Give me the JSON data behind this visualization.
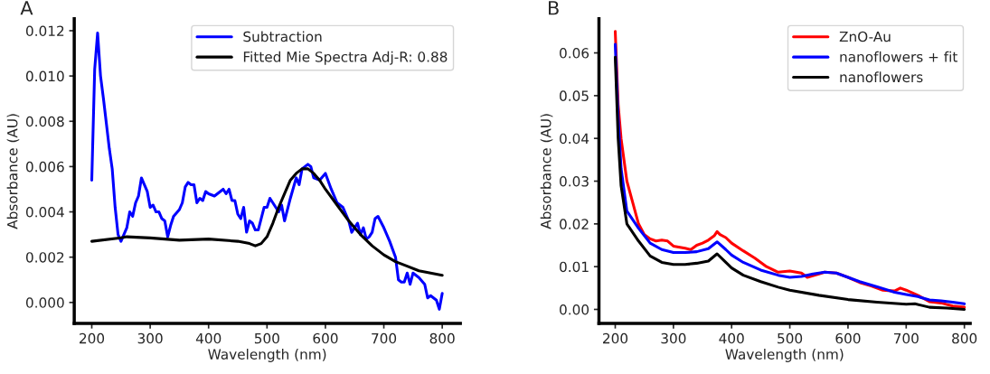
{
  "chart_data": [
    {
      "type": "line",
      "xlabel": "Wavelength (nm)",
      "ylabel": "Absorbance (AU)",
      "annotations": [
        "A"
      ],
      "legend": "top right",
      "grid": false,
      "xlim": [
        170,
        831
      ],
      "xticks": [
        200,
        300,
        400,
        500,
        600,
        700,
        800
      ],
      "ylim": [
        -0.00093,
        0.01253
      ],
      "yticks": [
        {
          "value": 0,
          "label": "0.000"
        },
        {
          "value": 0.002,
          "label": "0.002"
        },
        {
          "value": 0.004,
          "label": "0.004"
        },
        {
          "value": 0.006,
          "label": "0.006"
        },
        {
          "value": 0.008,
          "label": "0.008"
        },
        {
          "value": 0.01,
          "label": "0.010"
        },
        {
          "value": 0.012,
          "label": "0.012"
        }
      ],
      "series": [
        {
          "name": "Subtraction",
          "color": "#0000ff",
          "x": [
            200,
            205,
            210,
            215,
            220,
            225,
            230,
            235,
            240,
            245,
            250,
            255,
            260,
            265,
            270,
            275,
            280,
            285,
            290,
            295,
            300,
            305,
            310,
            315,
            320,
            325,
            330,
            335,
            340,
            350,
            355,
            360,
            365,
            370,
            375,
            380,
            385,
            390,
            395,
            400,
            410,
            420,
            425,
            430,
            435,
            440,
            445,
            450,
            455,
            460,
            465,
            470,
            475,
            480,
            485,
            490,
            495,
            500,
            505,
            510,
            520,
            525,
            530,
            540,
            550,
            555,
            560,
            565,
            570,
            575,
            580,
            590,
            600,
            610,
            620,
            630,
            640,
            645,
            650,
            655,
            660,
            665,
            670,
            675,
            680,
            685,
            690,
            700,
            710,
            720,
            725,
            730,
            735,
            740,
            745,
            750,
            760,
            770,
            775,
            780,
            790,
            795,
            800
          ],
          "values": [
            0.0054,
            0.0103,
            0.0119,
            0.01,
            0.009,
            0.0079,
            0.0068,
            0.0059,
            0.0042,
            0.003,
            0.0027,
            0.003,
            0.0033,
            0.004,
            0.0038,
            0.0044,
            0.0047,
            0.0055,
            0.0052,
            0.0049,
            0.0042,
            0.0043,
            0.004,
            0.004,
            0.0037,
            0.0036,
            0.0029,
            0.0034,
            0.0038,
            0.0041,
            0.0044,
            0.0051,
            0.0053,
            0.0052,
            0.0052,
            0.0044,
            0.0046,
            0.0045,
            0.0049,
            0.0048,
            0.0047,
            0.0049,
            0.005,
            0.0048,
            0.005,
            0.0045,
            0.0045,
            0.0039,
            0.0037,
            0.0042,
            0.0031,
            0.0036,
            0.0035,
            0.0032,
            0.0032,
            0.0037,
            0.0042,
            0.0042,
            0.0046,
            0.0044,
            0.004,
            0.0043,
            0.0036,
            0.0046,
            0.0055,
            0.0052,
            0.0059,
            0.006,
            0.0061,
            0.006,
            0.0055,
            0.0054,
            0.0057,
            0.005,
            0.0044,
            0.0042,
            0.0036,
            0.0031,
            0.0033,
            0.0035,
            0.003,
            0.0033,
            0.0028,
            0.0029,
            0.0031,
            0.0037,
            0.0038,
            0.0033,
            0.0027,
            0.002,
            0.001,
            0.0009,
            0.0009,
            0.0013,
            0.0008,
            0.0013,
            0.0011,
            0.0008,
            0.0002,
            0.0003,
            0.0001,
            -0.0003,
            0.0004
          ]
        },
        {
          "name": "Fitted Mie Spectra Adj-R: 0.88",
          "color": "#000000",
          "x": [
            200,
            250,
            260,
            300,
            350,
            400,
            450,
            470,
            480,
            490,
            500,
            510,
            520,
            530,
            540,
            550,
            560,
            570,
            580,
            590,
            600,
            620,
            640,
            660,
            680,
            700,
            720,
            740,
            760,
            780,
            800
          ],
          "values": [
            0.0027,
            0.00285,
            0.0029,
            0.00285,
            0.00275,
            0.0028,
            0.0027,
            0.0026,
            0.0025,
            0.0026,
            0.0029,
            0.0035,
            0.0042,
            0.0048,
            0.0054,
            0.0057,
            0.0059,
            0.0059,
            0.0057,
            0.0054,
            0.005,
            0.0043,
            0.0036,
            0.003,
            0.0025,
            0.0021,
            0.0018,
            0.0016,
            0.0014,
            0.0013,
            0.0012
          ]
        }
      ]
    },
    {
      "type": "line",
      "xlabel": "Wavelength (nm)",
      "ylabel": "Absorbance (AU)",
      "annotations": [
        "B"
      ],
      "legend": "top right",
      "grid": false,
      "xlim": [
        172,
        810
      ],
      "xticks": [
        200,
        300,
        400,
        500,
        600,
        700,
        800
      ],
      "ylim": [
        -0.0033,
        0.068
      ],
      "yticks": [
        {
          "value": 0,
          "label": "0.00"
        },
        {
          "value": 0.01,
          "label": "0.01"
        },
        {
          "value": 0.02,
          "label": "0.02"
        },
        {
          "value": 0.03,
          "label": "0.03"
        },
        {
          "value": 0.04,
          "label": "0.04"
        },
        {
          "value": 0.05,
          "label": "0.05"
        },
        {
          "value": 0.06,
          "label": "0.06"
        }
      ],
      "series": [
        {
          "name": "ZnO-Au",
          "color": "#ff0000",
          "x": [
            200,
            205,
            210,
            220,
            230,
            240,
            250,
            260,
            270,
            280,
            290,
            300,
            320,
            330,
            340,
            350,
            360,
            370,
            375,
            380,
            390,
            400,
            420,
            440,
            460,
            480,
            500,
            520,
            530,
            550,
            560,
            580,
            600,
            620,
            640,
            660,
            680,
            690,
            700,
            720,
            740,
            760,
            780,
            800
          ],
          "values": [
            0.065,
            0.048,
            0.04,
            0.03,
            0.025,
            0.02,
            0.0175,
            0.0165,
            0.016,
            0.0162,
            0.016,
            0.0148,
            0.0143,
            0.014,
            0.015,
            0.0155,
            0.0162,
            0.0172,
            0.0182,
            0.0175,
            0.0168,
            0.0155,
            0.0137,
            0.012,
            0.01,
            0.0087,
            0.009,
            0.0085,
            0.0075,
            0.0083,
            0.0087,
            0.0085,
            0.0075,
            0.0063,
            0.0055,
            0.0045,
            0.0043,
            0.005,
            0.0045,
            0.0033,
            0.0018,
            0.0015,
            0.0008,
            0.0005
          ]
        },
        {
          "name": "nanoflowers + fit",
          "color": "#0000ff",
          "x": [
            200,
            205,
            210,
            220,
            240,
            260,
            280,
            300,
            320,
            340,
            360,
            375,
            390,
            400,
            420,
            450,
            480,
            500,
            520,
            540,
            560,
            580,
            600,
            620,
            650,
            680,
            700,
            720,
            740,
            760,
            780,
            800
          ],
          "values": [
            0.062,
            0.045,
            0.033,
            0.023,
            0.019,
            0.0155,
            0.014,
            0.0133,
            0.0133,
            0.0135,
            0.0142,
            0.0158,
            0.014,
            0.0127,
            0.011,
            0.0092,
            0.008,
            0.0075,
            0.0077,
            0.0083,
            0.0087,
            0.0085,
            0.0075,
            0.0065,
            0.0053,
            0.004,
            0.0035,
            0.003,
            0.0022,
            0.002,
            0.0017,
            0.0013
          ]
        },
        {
          "name": "nanoflowers",
          "color": "#000000",
          "x": [
            200,
            205,
            210,
            220,
            240,
            260,
            280,
            300,
            320,
            340,
            360,
            375,
            390,
            400,
            420,
            450,
            480,
            500,
            550,
            600,
            650,
            700,
            715,
            740,
            770,
            800
          ],
          "values": [
            0.059,
            0.04,
            0.029,
            0.02,
            0.016,
            0.0125,
            0.011,
            0.0105,
            0.0105,
            0.0108,
            0.0113,
            0.013,
            0.011,
            0.0097,
            0.008,
            0.0065,
            0.0052,
            0.0045,
            0.0033,
            0.0023,
            0.0017,
            0.0012,
            0.0013,
            0.0005,
            0.0003,
            0.0
          ]
        }
      ]
    }
  ]
}
